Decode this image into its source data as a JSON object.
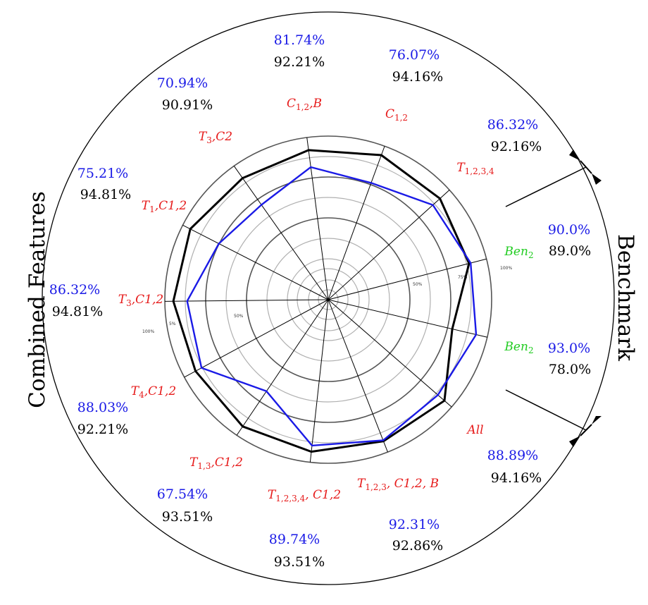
{
  "colors": {
    "blue": "#1a1ae6",
    "black": "#000000",
    "red": "#e61a1a",
    "green": "#22cc22",
    "grid_dark": "#555555",
    "grid_light": "#b0b0b0"
  },
  "chart_data": {
    "type": "radar",
    "groups": {
      "left": "Combined Features",
      "right": "Benchmark"
    },
    "radial_ticks": [
      "50%",
      "75%",
      "100%"
    ],
    "axes": [
      {
        "label": "C",
        "sub": "1,2",
        "suffix": ",B",
        "label_color": "red",
        "blue_text": "81.74%",
        "black_text": "92.21%",
        "blue": 81.74,
        "black": 92.21
      },
      {
        "label": "C",
        "sub": "1,2",
        "suffix": "",
        "label_color": "red",
        "blue_text": "76.07%",
        "black_text": "94.16%",
        "blue": 76.07,
        "black": 94.16
      },
      {
        "label": "T",
        "sub": "1,2,3,4",
        "suffix": "",
        "label_color": "red",
        "blue_text": "86.32%",
        "black_text": "92.16%",
        "blue": 86.32,
        "black": 92.16
      },
      {
        "label": "Ben",
        "sub": "2",
        "suffix": "",
        "label_color": "green",
        "blue_text": "90.0%",
        "black_text": "89.0%",
        "blue": 90.0,
        "black": 89.0
      },
      {
        "label": "Ben",
        "sub": "2",
        "suffix": "",
        "label_color": "green",
        "blue_text": "93.0%",
        "black_text": "78.0%",
        "blue": 93.0,
        "black": 78.0
      },
      {
        "label": "All",
        "sub": "",
        "suffix": "",
        "label_color": "red",
        "blue_text": "88.89%",
        "black_text": "94.16%",
        "blue": 88.89,
        "black": 94.16
      },
      {
        "label": "T",
        "sub": "1,2,3",
        "suffix": ", C1,2, B",
        "label_color": "red",
        "blue_text": "92.31%",
        "black_text": "92.86%",
        "blue": 92.31,
        "black": 92.86
      },
      {
        "label": "T",
        "sub": "1,2,3,4",
        "suffix": ", C1,2",
        "label_color": "red",
        "blue_text": "89.74%",
        "black_text": "93.51%",
        "blue": 89.74,
        "black": 93.51
      },
      {
        "label": "T",
        "sub": "1,3",
        "suffix": ",C1,2",
        "label_color": "red",
        "blue_text": "67.54%",
        "black_text": "93.51%",
        "blue": 67.54,
        "black": 93.51
      },
      {
        "label": "T",
        "sub": "4",
        "suffix": ",C1,2",
        "label_color": "red",
        "blue_text": "88.03%",
        "black_text": "92.21%",
        "blue": 88.03,
        "black": 92.21
      },
      {
        "label": "T",
        "sub": "3",
        "suffix": ",C1,2",
        "label_color": "red",
        "blue_text": "86.32%",
        "black_text": "94.81%",
        "blue": 86.32,
        "black": 94.81
      },
      {
        "label": "T",
        "sub": "1",
        "suffix": ",C1,2",
        "label_color": "red",
        "blue_text": "75.21%",
        "black_text": "94.81%",
        "blue": 75.21,
        "black": 94.81
      },
      {
        "label": "T",
        "sub": "3",
        "suffix": ",C2",
        "label_color": "red",
        "blue_text": "70.94%",
        "black_text": "90.91%",
        "blue": 70.94,
        "black": 90.91
      }
    ],
    "series": [
      {
        "name": "",
        "color_key": "blue"
      },
      {
        "name": "",
        "color_key": "black"
      }
    ],
    "rlim": [
      0,
      100
    ],
    "grid": true,
    "legend": "none"
  }
}
